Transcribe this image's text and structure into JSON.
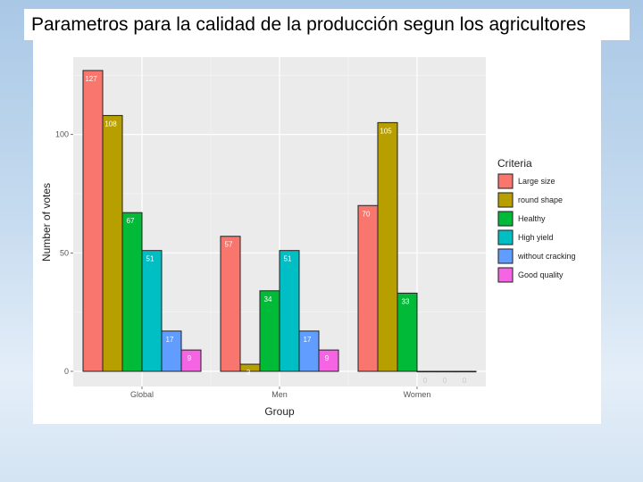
{
  "slide": {
    "title": "Parametros para la calidad de la producción segun los agricultores"
  },
  "chart_data": {
    "type": "bar",
    "title": "",
    "xlabel": "Group",
    "ylabel": "Number of votes",
    "categories": [
      "Global",
      "Men",
      "Women"
    ],
    "ylim": [
      0,
      127
    ],
    "yticks": [
      0,
      50,
      100
    ],
    "grid": true,
    "legend": {
      "title": "Criteria",
      "placement": "right"
    },
    "series": [
      {
        "name": "Large size",
        "color": "#F8766D",
        "values": [
          127,
          57,
          70
        ]
      },
      {
        "name": "round  shape",
        "color": "#B79F00",
        "values": [
          108,
          3,
          105
        ]
      },
      {
        "name": "Healthy",
        "color": "#00BA38",
        "values": [
          67,
          34,
          33
        ]
      },
      {
        "name": "High yield",
        "color": "#00BFC4",
        "values": [
          51,
          51,
          0
        ]
      },
      {
        "name": "without cracking",
        "color": "#619CFF",
        "values": [
          17,
          17,
          0
        ]
      },
      {
        "name": "Good quality",
        "color": "#F564E3",
        "values": [
          9,
          9,
          0
        ]
      }
    ]
  }
}
